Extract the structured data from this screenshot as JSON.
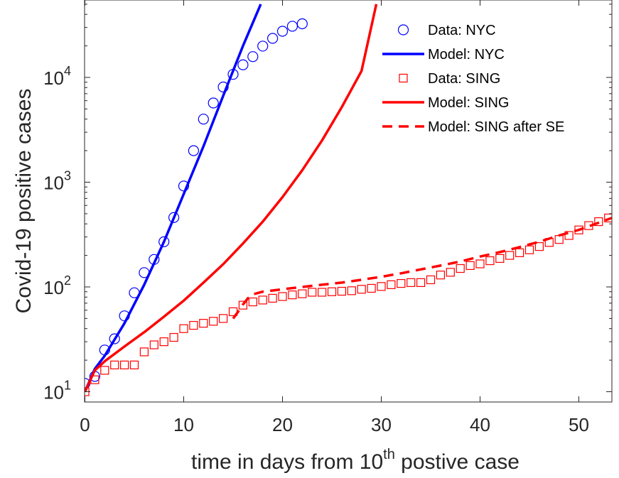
{
  "chart_data": {
    "type": "line",
    "title": "",
    "xlabel": {
      "text": "time in days from 10",
      "sup": "th",
      "rest": " postive case"
    },
    "ylabel": "Covid-19 positive cases",
    "xlim": [
      0,
      54
    ],
    "ylim": [
      10,
      50000
    ],
    "yscale": "log",
    "grid": false,
    "legend_position": "top-right",
    "x_ticks": [
      0,
      10,
      20,
      30,
      40,
      50
    ],
    "x_tick_labels": [
      "0",
      "10",
      "20",
      "30",
      "40",
      "50"
    ],
    "y_ticks": [
      10,
      100,
      1000,
      10000
    ],
    "y_tick_labels": [
      {
        "base": "10",
        "exp": "1"
      },
      {
        "base": "10",
        "exp": "2"
      },
      {
        "base": "10",
        "exp": "3"
      },
      {
        "base": "10",
        "exp": "4"
      }
    ],
    "series": [
      {
        "name": "Data: NYC",
        "kind": "markers",
        "marker": "circle",
        "color": "#0000ff",
        "x": [
          0,
          1,
          2,
          3,
          4,
          5,
          6,
          7,
          8,
          9,
          10,
          11,
          12,
          13,
          14,
          15,
          16,
          17,
          18,
          19,
          20,
          21,
          22
        ],
        "y": [
          12,
          14,
          25,
          32,
          53,
          88,
          137,
          183,
          270,
          460,
          920,
          2000,
          4000,
          5700,
          8100,
          10700,
          13200,
          15800,
          19900,
          23600,
          27600,
          30800,
          32500
        ]
      },
      {
        "name": "Model: NYC",
        "kind": "line",
        "style": "solid",
        "color": "#0000ff",
        "x": [
          0,
          1,
          2,
          4,
          6,
          8,
          10,
          12,
          14,
          16,
          17.8
        ],
        "y": [
          10,
          16.5,
          22,
          45,
          105,
          270,
          770,
          2200,
          6700,
          20000,
          50000
        ]
      },
      {
        "name": "Data: SING",
        "kind": "markers",
        "marker": "square",
        "color": "#ff0000",
        "x": [
          0,
          1,
          2,
          3,
          4,
          5,
          6,
          7,
          8,
          9,
          10,
          11,
          12,
          13,
          14,
          15,
          16,
          17,
          18,
          19,
          20,
          21,
          22,
          23,
          24,
          25,
          26,
          27,
          28,
          29,
          30,
          31,
          32,
          33,
          34,
          35,
          36,
          37,
          38,
          39,
          40,
          41,
          42,
          43,
          44,
          45,
          46,
          47,
          48,
          49,
          50,
          51,
          52,
          53
        ],
        "y": [
          10,
          13,
          16,
          18,
          18,
          18,
          24,
          28,
          30,
          33,
          40,
          43,
          45,
          47,
          50,
          58,
          67,
          72,
          75,
          78,
          81,
          84,
          86,
          89,
          89,
          90,
          91,
          92,
          95,
          97,
          101,
          105,
          108,
          110,
          110,
          117,
          130,
          138,
          150,
          160,
          166,
          178,
          187,
          200,
          212,
          226,
          243,
          266,
          284,
          310,
          350,
          385,
          420,
          455
        ]
      },
      {
        "name": "Model: SING",
        "kind": "line",
        "style": "solid",
        "color": "#ff0000",
        "x": [
          0,
          1,
          2,
          4,
          6,
          8,
          10,
          12,
          14,
          16,
          18,
          20,
          22,
          24,
          26,
          28,
          29.5
        ],
        "y": [
          10,
          16,
          19.5,
          27,
          37,
          52,
          74,
          110,
          165,
          260,
          420,
          720,
          1300,
          2500,
          5200,
          11500,
          50000
        ]
      },
      {
        "name": "Model: SING after SE",
        "kind": "line",
        "style": "dashed",
        "color": "#ff0000",
        "x": [
          15,
          15.5,
          16,
          16.5,
          17,
          18,
          20,
          22,
          24,
          26,
          28,
          30,
          32,
          34,
          36,
          38,
          40,
          42,
          44,
          46,
          48,
          50,
          52,
          54
        ],
        "y": [
          50,
          58,
          68,
          78,
          85,
          90,
          95,
          100,
          105,
          110,
          117,
          125,
          135,
          147,
          160,
          175,
          195,
          215,
          240,
          270,
          310,
          350,
          410,
          480
        ]
      }
    ]
  }
}
